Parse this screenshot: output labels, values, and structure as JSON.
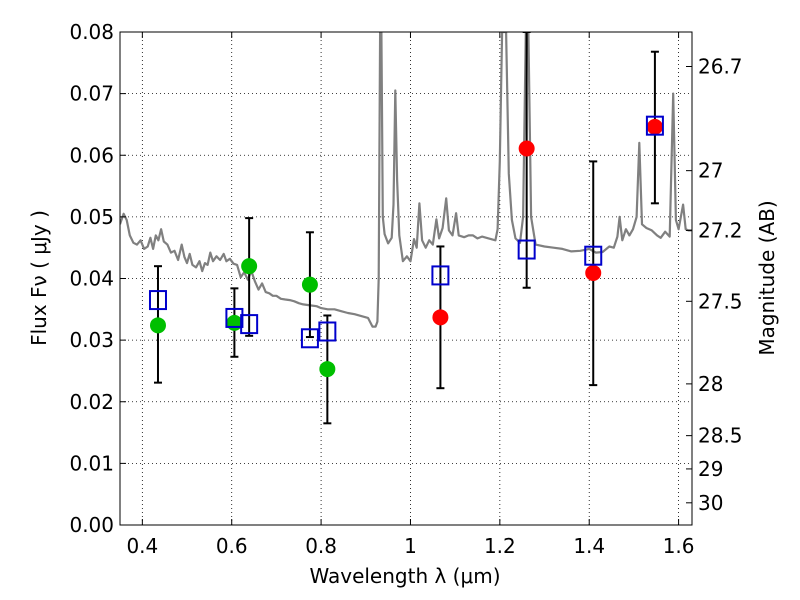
{
  "chart_data": {
    "type": "scatter",
    "xlabel": "Wavelength  λ (μm)",
    "ylabel": "Flux  Fν  ( μJy )",
    "y2label": "Magnitude (AB)",
    "xlim": [
      0.35,
      1.63
    ],
    "ylim": [
      0.0,
      0.08
    ],
    "grid": true,
    "x_ticks": [
      0.4,
      0.6,
      0.8,
      1.0,
      1.2,
      1.4,
      1.6
    ],
    "x_tick_labels": [
      "0.4",
      "0.6",
      "0.8",
      "1",
      "1.2",
      "1.4",
      "1.6"
    ],
    "y_ticks": [
      0.0,
      0.01,
      0.02,
      0.03,
      0.04,
      0.05,
      0.06,
      0.07,
      0.08
    ],
    "y_tick_labels": [
      "0.00",
      "0.01",
      "0.02",
      "0.03",
      "0.04",
      "0.05",
      "0.06",
      "0.07",
      "0.08"
    ],
    "y2_ticks": [
      {
        "label": "26.7",
        "flux": 0.0744
      },
      {
        "label": "27",
        "flux": 0.0575
      },
      {
        "label": "27.2",
        "flux": 0.0478
      },
      {
        "label": "27.5",
        "flux": 0.0363
      },
      {
        "label": "28",
        "flux": 0.0229
      },
      {
        "label": "28.5",
        "flux": 0.0145
      },
      {
        "label": "29",
        "flux": 0.0091
      },
      {
        "label": "30",
        "flux": 0.0036
      }
    ],
    "series": [
      {
        "marker": "circle",
        "color": "#00bf00",
        "points": [
          {
            "x": 0.435,
            "y": 0.0324
          },
          {
            "x": 0.606,
            "y": 0.0328
          },
          {
            "x": 0.639,
            "y": 0.042
          },
          {
            "x": 0.775,
            "y": 0.039
          },
          {
            "x": 0.814,
            "y": 0.0253
          }
        ]
      },
      {
        "marker": "circle",
        "color": "#ff0000",
        "points": [
          {
            "x": 1.067,
            "y": 0.0337
          },
          {
            "x": 1.26,
            "y": 0.0611
          },
          {
            "x": 1.409,
            "y": 0.0409
          },
          {
            "x": 1.547,
            "y": 0.0646
          }
        ]
      },
      {
        "marker": "open-square",
        "color": "#0000cc",
        "points": [
          {
            "x": 0.435,
            "y": 0.0365,
            "err_low": 0.0231,
            "err_high": 0.042
          },
          {
            "x": 0.606,
            "y": 0.0336,
            "err_low": 0.0273,
            "err_high": 0.0384
          },
          {
            "x": 0.639,
            "y": 0.0326,
            "err_low": 0.0307,
            "err_high": 0.0498
          },
          {
            "x": 0.775,
            "y": 0.0303,
            "err_low": 0.0305,
            "err_high": 0.0475
          },
          {
            "x": 0.814,
            "y": 0.0314,
            "err_low": 0.0165,
            "err_high": 0.034
          },
          {
            "x": 1.067,
            "y": 0.0405,
            "err_low": 0.0222,
            "err_high": 0.0452
          },
          {
            "x": 1.26,
            "y": 0.0447,
            "err_low": 0.0385,
            "err_high": 0.08
          },
          {
            "x": 1.409,
            "y": 0.0437,
            "err_low": 0.0227,
            "err_high": 0.059
          },
          {
            "x": 1.547,
            "y": 0.0648,
            "err_low": 0.0522,
            "err_high": 0.0768
          }
        ]
      },
      {
        "type": "line",
        "color": "#808080",
        "points": [
          [
            0.35,
            0.0488
          ],
          [
            0.358,
            0.0505
          ],
          [
            0.365,
            0.0495
          ],
          [
            0.372,
            0.047
          ],
          [
            0.38,
            0.0458
          ],
          [
            0.388,
            0.0455
          ],
          [
            0.396,
            0.0462
          ],
          [
            0.404,
            0.0448
          ],
          [
            0.412,
            0.0452
          ],
          [
            0.418,
            0.0466
          ],
          [
            0.424,
            0.0448
          ],
          [
            0.43,
            0.047
          ],
          [
            0.436,
            0.0462
          ],
          [
            0.442,
            0.048
          ],
          [
            0.448,
            0.046
          ],
          [
            0.456,
            0.0455
          ],
          [
            0.464,
            0.0442
          ],
          [
            0.472,
            0.0445
          ],
          [
            0.48,
            0.043
          ],
          [
            0.488,
            0.0455
          ],
          [
            0.494,
            0.0435
          ],
          [
            0.5,
            0.0425
          ],
          [
            0.506,
            0.044
          ],
          [
            0.512,
            0.0422
          ],
          [
            0.52,
            0.0418
          ],
          [
            0.528,
            0.0428
          ],
          [
            0.534,
            0.0412
          ],
          [
            0.54,
            0.0425
          ],
          [
            0.546,
            0.0422
          ],
          [
            0.552,
            0.0442
          ],
          [
            0.558,
            0.0428
          ],
          [
            0.566,
            0.0436
          ],
          [
            0.574,
            0.043
          ],
          [
            0.582,
            0.044
          ],
          [
            0.588,
            0.0428
          ],
          [
            0.596,
            0.0432
          ],
          [
            0.604,
            0.0424
          ],
          [
            0.612,
            0.0422
          ],
          [
            0.62,
            0.0402
          ],
          [
            0.628,
            0.041
          ],
          [
            0.636,
            0.0398
          ],
          [
            0.644,
            0.0412
          ],
          [
            0.652,
            0.0395
          ],
          [
            0.66,
            0.0382
          ],
          [
            0.668,
            0.0392
          ],
          [
            0.676,
            0.0378
          ],
          [
            0.684,
            0.0376
          ],
          [
            0.692,
            0.0372
          ],
          [
            0.7,
            0.0372
          ],
          [
            0.71,
            0.0367
          ],
          [
            0.72,
            0.0366
          ],
          [
            0.73,
            0.0365
          ],
          [
            0.74,
            0.0363
          ],
          [
            0.75,
            0.036
          ],
          [
            0.76,
            0.0358
          ],
          [
            0.77,
            0.0357
          ],
          [
            0.78,
            0.0356
          ],
          [
            0.79,
            0.0355
          ],
          [
            0.8,
            0.0352
          ],
          [
            0.815,
            0.035
          ],
          [
            0.83,
            0.035
          ],
          [
            0.845,
            0.0347
          ],
          [
            0.86,
            0.0344
          ],
          [
            0.875,
            0.0342
          ],
          [
            0.89,
            0.0339
          ],
          [
            0.905,
            0.0336
          ],
          [
            0.915,
            0.0322
          ],
          [
            0.922,
            0.0322
          ],
          [
            0.926,
            0.033
          ],
          [
            0.929,
            0.04
          ],
          [
            0.932,
            0.08
          ],
          [
            0.935,
            0.08
          ],
          [
            0.938,
            0.05
          ],
          [
            0.942,
            0.0472
          ],
          [
            0.95,
            0.0457
          ],
          [
            0.958,
            0.0466
          ],
          [
            0.962,
            0.052
          ],
          [
            0.966,
            0.0705
          ],
          [
            0.97,
            0.056
          ],
          [
            0.975,
            0.047
          ],
          [
            0.983,
            0.0428
          ],
          [
            0.992,
            0.0436
          ],
          [
            1.0,
            0.0428
          ],
          [
            1.008,
            0.0464
          ],
          [
            1.014,
            0.045
          ],
          [
            1.02,
            0.0522
          ],
          [
            1.026,
            0.0462
          ],
          [
            1.034,
            0.045
          ],
          [
            1.042,
            0.0462
          ],
          [
            1.05,
            0.0455
          ],
          [
            1.058,
            0.0496
          ],
          [
            1.064,
            0.0465
          ],
          [
            1.072,
            0.0482
          ],
          [
            1.08,
            0.053
          ],
          [
            1.086,
            0.0478
          ],
          [
            1.094,
            0.047
          ],
          [
            1.102,
            0.0506
          ],
          [
            1.108,
            0.047
          ],
          [
            1.12,
            0.0467
          ],
          [
            1.13,
            0.047
          ],
          [
            1.14,
            0.047
          ],
          [
            1.15,
            0.0465
          ],
          [
            1.16,
            0.0468
          ],
          [
            1.17,
            0.0466
          ],
          [
            1.18,
            0.0464
          ],
          [
            1.19,
            0.0462
          ],
          [
            1.195,
            0.048
          ],
          [
            1.2,
            0.059
          ],
          [
            1.205,
            0.08
          ],
          [
            1.214,
            0.08
          ],
          [
            1.22,
            0.057
          ],
          [
            1.227,
            0.0495
          ],
          [
            1.235,
            0.0465
          ],
          [
            1.245,
            0.0458
          ],
          [
            1.252,
            0.05
          ],
          [
            1.258,
            0.08
          ],
          [
            1.264,
            0.08
          ],
          [
            1.27,
            0.05
          ],
          [
            1.28,
            0.0455
          ],
          [
            1.3,
            0.0452
          ],
          [
            1.32,
            0.045
          ],
          [
            1.34,
            0.0448
          ],
          [
            1.36,
            0.0444
          ],
          [
            1.38,
            0.0445
          ],
          [
            1.4,
            0.0448
          ],
          [
            1.415,
            0.0442
          ],
          [
            1.43,
            0.0443
          ],
          [
            1.445,
            0.0452
          ],
          [
            1.455,
            0.045
          ],
          [
            1.463,
            0.0468
          ],
          [
            1.468,
            0.05
          ],
          [
            1.474,
            0.0462
          ],
          [
            1.482,
            0.048
          ],
          [
            1.49,
            0.047
          ],
          [
            1.498,
            0.048
          ],
          [
            1.506,
            0.05
          ],
          [
            1.512,
            0.062
          ],
          [
            1.518,
            0.0488
          ],
          [
            1.528,
            0.0482
          ],
          [
            1.54,
            0.0478
          ],
          [
            1.552,
            0.047
          ],
          [
            1.56,
            0.0466
          ],
          [
            1.57,
            0.0476
          ],
          [
            1.58,
            0.0468
          ],
          [
            1.588,
            0.07
          ],
          [
            1.594,
            0.0495
          ],
          [
            1.6,
            0.048
          ],
          [
            1.61,
            0.052
          ],
          [
            1.616,
            0.048
          ],
          [
            1.622,
            0.0478
          ],
          [
            1.63,
            0.0478
          ]
        ]
      }
    ]
  }
}
